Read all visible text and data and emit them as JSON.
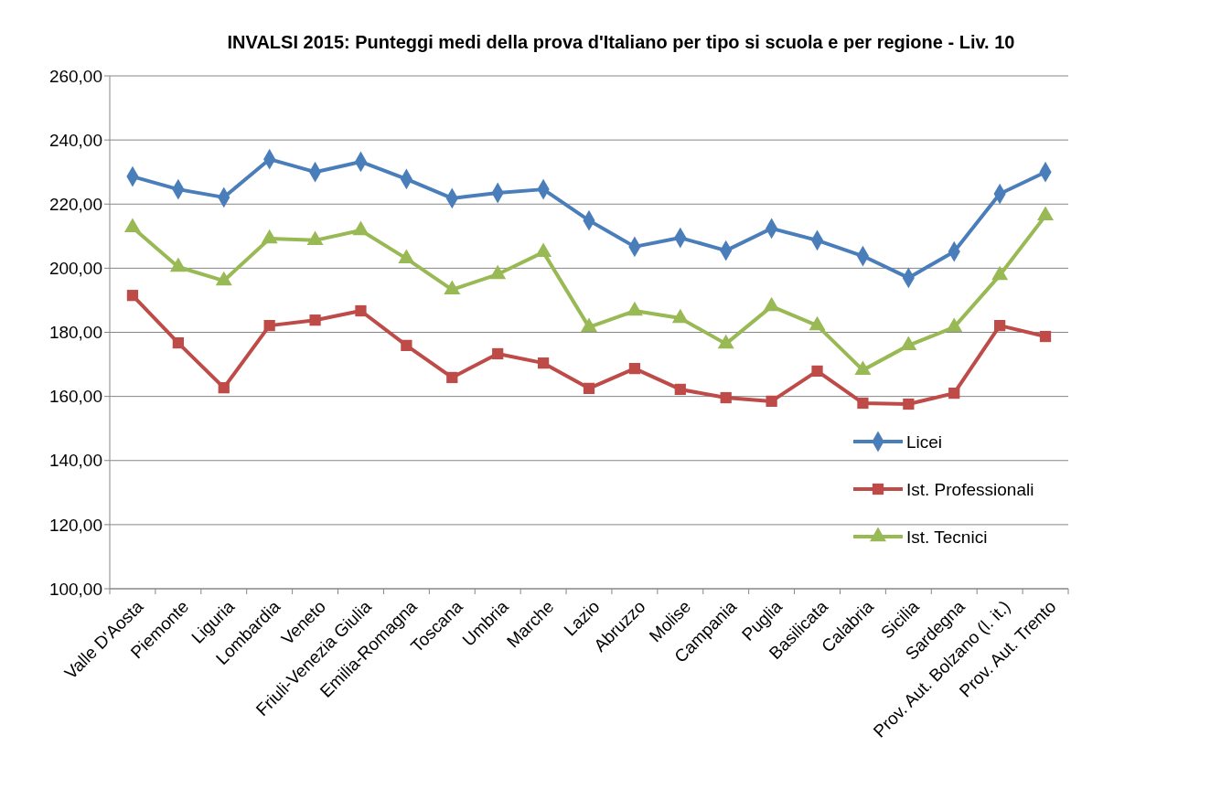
{
  "chart_data": {
    "type": "line",
    "title": "INVALSI 2015: Punteggi medi della prova d'Italiano per tipo si scuola e per regione - Liv. 10",
    "categories": [
      "Valle D'Aosta",
      "Piemonte",
      "Liguria",
      "Lombardia",
      "Veneto",
      "Friuli-Venezia Giulia",
      "Emilia-Romagna",
      "Toscana",
      "Umbria",
      "Marche",
      "Lazio",
      "Abruzzo",
      "Molise",
      "Campania",
      "Puglia",
      "Basilicata",
      "Calabria",
      "Sicilia",
      "Sardegna",
      "Prov. Aut. Bolzano (l. it.)",
      "Prov. Aut. Trento"
    ],
    "series": [
      {
        "name": "Licei",
        "color": "#4a7ebb",
        "marker": "diamond",
        "values": [
          228.6,
          224.6,
          222.1,
          234.0,
          230.0,
          233.2,
          227.8,
          221.8,
          223.5,
          224.6,
          214.9,
          206.7,
          209.5,
          205.5,
          212.4,
          208.7,
          203.8,
          197.0,
          205.2,
          223.2,
          230.0
        ]
      },
      {
        "name": "Ist. Professionali",
        "color": "#be4b48",
        "marker": "square",
        "values": [
          191.5,
          176.7,
          162.7,
          182.1,
          183.8,
          186.7,
          175.9,
          165.9,
          173.3,
          170.4,
          162.5,
          168.7,
          162.2,
          159.6,
          158.5,
          167.9,
          157.9,
          157.6,
          161.0,
          182.1,
          178.7
        ]
      },
      {
        "name": "Ist. Tecnici",
        "color": "#98b954",
        "marker": "triangle",
        "values": [
          212.7,
          200.4,
          196.1,
          209.2,
          208.7,
          211.8,
          203.0,
          193.3,
          198.1,
          205.0,
          181.6,
          186.7,
          184.4,
          176.4,
          188.1,
          182.1,
          168.2,
          175.9,
          181.6,
          197.8,
          216.4
        ]
      }
    ],
    "ylim": [
      100,
      260
    ],
    "yticks": [
      {
        "value": 100,
        "label": "100,00"
      },
      {
        "value": 120,
        "label": "120,00"
      },
      {
        "value": 140,
        "label": "140,00"
      },
      {
        "value": 160,
        "label": "160,00"
      },
      {
        "value": 180,
        "label": "180,00"
      },
      {
        "value": 200,
        "label": "200,00"
      },
      {
        "value": 220,
        "label": "220,00"
      },
      {
        "value": 240,
        "label": "240,00"
      },
      {
        "value": 260,
        "label": "260,00"
      }
    ],
    "grid": "y",
    "legend": "right",
    "line_style": "solid"
  }
}
